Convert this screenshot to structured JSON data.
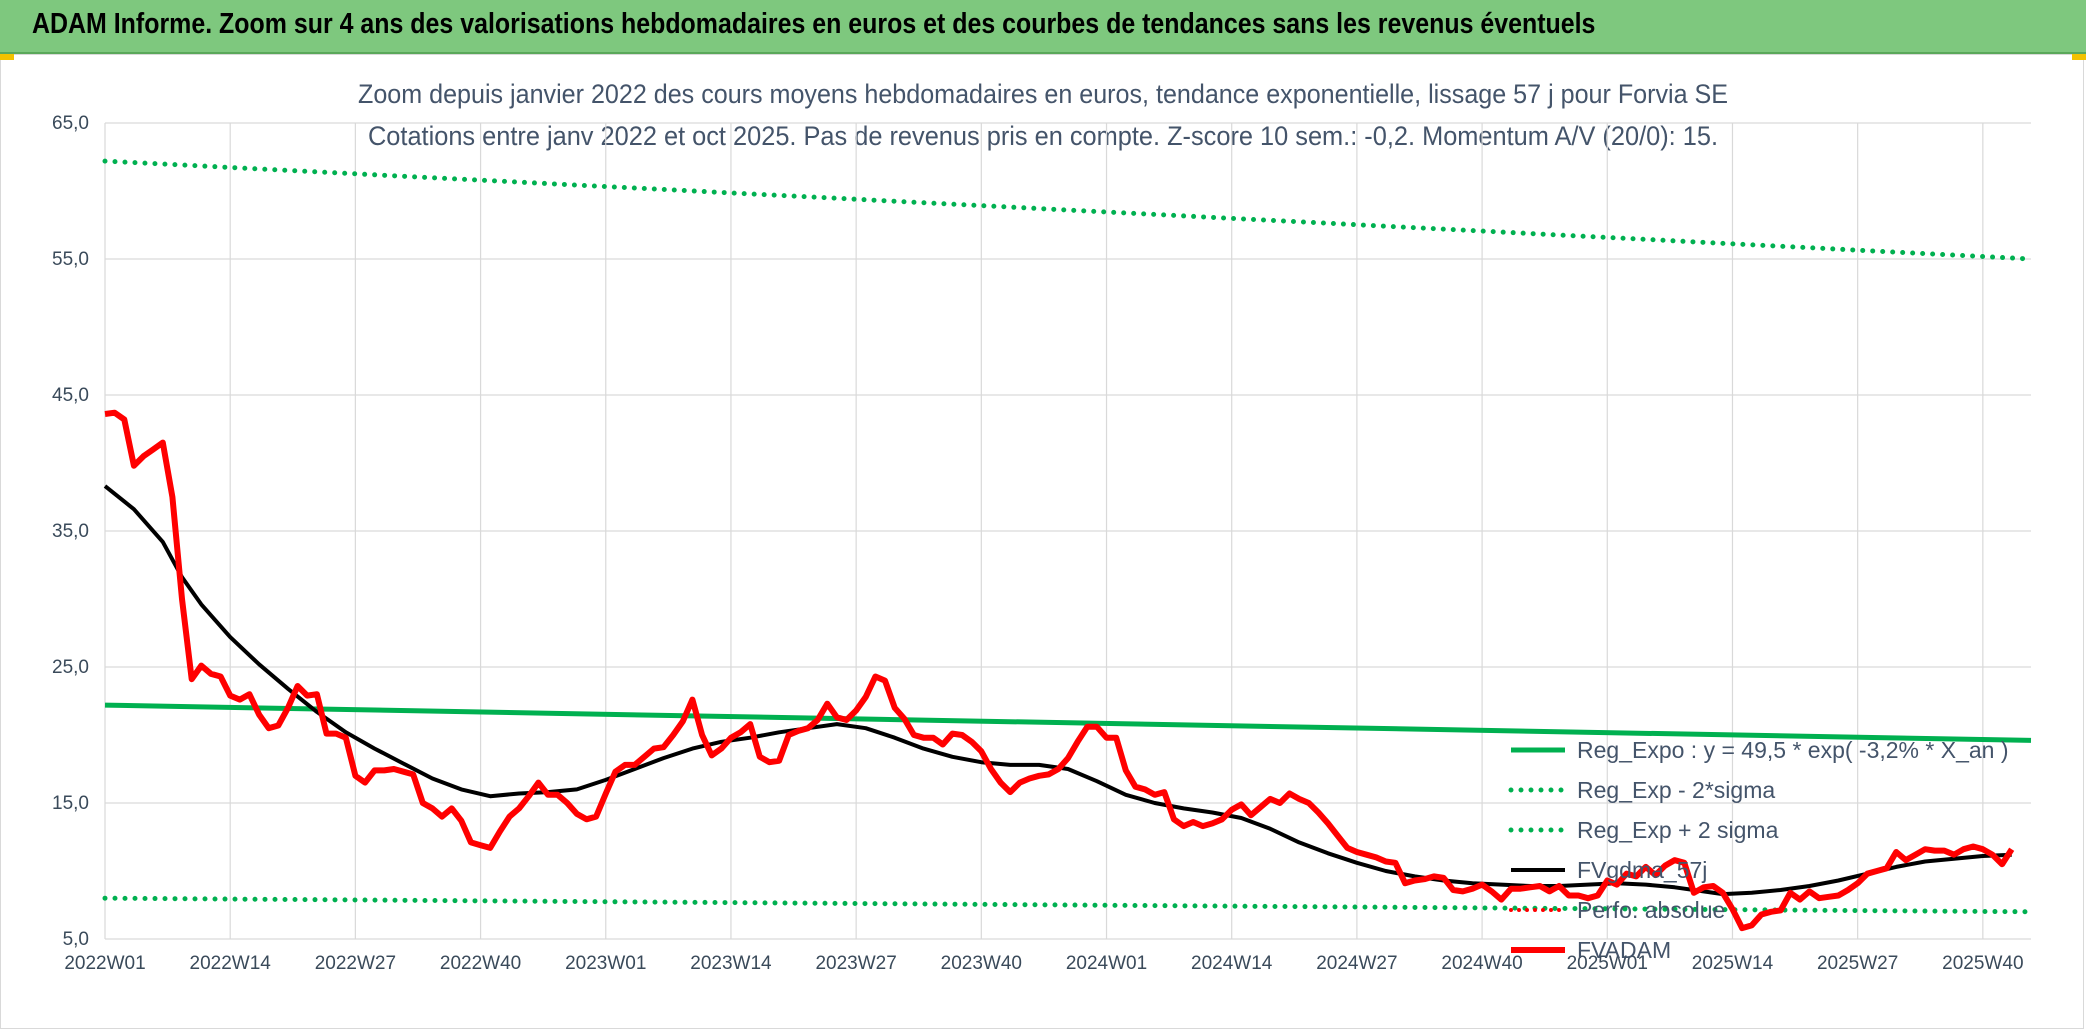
{
  "banner": {
    "title": "ADAM Informe. Zoom sur 4 ans des valorisations hebdomadaires en euros et des courbes de tendances sans les revenus éventuels"
  },
  "chart_data": {
    "type": "line",
    "title": "Zoom depuis janvier 2022 des cours moyens hebdomadaires en euros, tendance exponentielle, lissage 57 j pour Forvia SE",
    "subtitle": "Cotations entre janv 2022 et oct 2025. Pas de revenus pris en compte. Z-score 10 sem.: -0,2. Momentum A/V (20/0): 15.",
    "xlabel": "",
    "ylabel": "",
    "ylim": [
      5,
      65
    ],
    "y_ticks": [
      "5,0",
      "15,0",
      "25,0",
      "35,0",
      "45,0",
      "55,0",
      "65,0"
    ],
    "x_ticks": [
      "2022W01",
      "2022W14",
      "2022W27",
      "2022W40",
      "2023W01",
      "2023W14",
      "2023W27",
      "2023W40",
      "2024W01",
      "2024W14",
      "2024W27",
      "2024W40",
      "2025W01",
      "2025W14",
      "2025W27",
      "2025W40"
    ],
    "grid": true,
    "legend_position": "right",
    "colors": {
      "reg_expo": "#00b050",
      "reg_band": "#00b050",
      "fvgdma": "#000000",
      "perfo": "#ff0000"
    },
    "series": [
      {
        "name": "Reg_Expo : y = 49,5 * exp( -3,2% *  X_an )",
        "style": "solid-thick",
        "points": [
          [
            0,
            22.2
          ],
          [
            200,
            19.6
          ]
        ]
      },
      {
        "name": "Reg_Exp - 2*sigma",
        "style": "dotted",
        "points": [
          [
            0,
            8.0
          ],
          [
            200,
            7.0
          ]
        ]
      },
      {
        "name": "Reg_Exp + 2 sigma",
        "style": "dotted",
        "points": [
          [
            0,
            62.2
          ],
          [
            200,
            55.0
          ]
        ]
      },
      {
        "name": "FVgdma_57j",
        "style": "solid",
        "points": [
          [
            0,
            38.3
          ],
          [
            3,
            36.6
          ],
          [
            6,
            34.2
          ],
          [
            8,
            31.6
          ],
          [
            10,
            29.6
          ],
          [
            13,
            27.2
          ],
          [
            16,
            25.2
          ],
          [
            19,
            23.4
          ],
          [
            22,
            21.7
          ],
          [
            25,
            20.2
          ],
          [
            28,
            19.0
          ],
          [
            31,
            17.9
          ],
          [
            34,
            16.8
          ],
          [
            37,
            16.0
          ],
          [
            40,
            15.5
          ],
          [
            43,
            15.7
          ],
          [
            46,
            15.8
          ],
          [
            49,
            16.0
          ],
          [
            52,
            16.7
          ],
          [
            55,
            17.5
          ],
          [
            58,
            18.3
          ],
          [
            61,
            19.0
          ],
          [
            64,
            19.5
          ],
          [
            67,
            19.8
          ],
          [
            70,
            20.2
          ],
          [
            73,
            20.5
          ],
          [
            76,
            20.8
          ],
          [
            79,
            20.5
          ],
          [
            82,
            19.8
          ],
          [
            85,
            19.0
          ],
          [
            88,
            18.4
          ],
          [
            91,
            18.0
          ],
          [
            94,
            17.8
          ],
          [
            97,
            17.8
          ],
          [
            100,
            17.5
          ],
          [
            103,
            16.6
          ],
          [
            106,
            15.6
          ],
          [
            109,
            15.0
          ],
          [
            112,
            14.6
          ],
          [
            115,
            14.3
          ],
          [
            118,
            13.9
          ],
          [
            121,
            13.1
          ],
          [
            124,
            12.1
          ],
          [
            127,
            11.3
          ],
          [
            130,
            10.6
          ],
          [
            133,
            10.0
          ],
          [
            136,
            9.6
          ],
          [
            139,
            9.3
          ],
          [
            142,
            9.1
          ],
          [
            145,
            9.0
          ],
          [
            148,
            8.9
          ],
          [
            151,
            8.9
          ],
          [
            154,
            9.0
          ],
          [
            157,
            9.1
          ],
          [
            160,
            9.0
          ],
          [
            163,
            8.8
          ],
          [
            166,
            8.5
          ],
          [
            168,
            8.3
          ],
          [
            171,
            8.4
          ],
          [
            174,
            8.6
          ],
          [
            177,
            8.9
          ],
          [
            180,
            9.3
          ],
          [
            183,
            9.8
          ],
          [
            186,
            10.3
          ],
          [
            189,
            10.7
          ],
          [
            192,
            10.9
          ],
          [
            195,
            11.1
          ],
          [
            198,
            11.2
          ]
        ]
      },
      {
        "name": "Perfo. absolue",
        "style": "dotted",
        "points": []
      },
      {
        "name": "FVADAM",
        "style": "solid-thick",
        "points": [
          [
            0,
            43.6
          ],
          [
            1,
            43.7
          ],
          [
            2,
            43.2
          ],
          [
            3,
            39.8
          ],
          [
            4,
            40.5
          ],
          [
            5,
            41.0
          ],
          [
            6,
            41.5
          ],
          [
            7,
            37.5
          ],
          [
            8,
            30.0
          ],
          [
            9,
            24.1
          ],
          [
            10,
            25.1
          ],
          [
            11,
            24.5
          ],
          [
            12,
            24.3
          ],
          [
            13,
            22.9
          ],
          [
            14,
            22.6
          ],
          [
            15,
            23.0
          ],
          [
            16,
            21.5
          ],
          [
            17,
            20.5
          ],
          [
            18,
            20.7
          ],
          [
            19,
            22.0
          ],
          [
            20,
            23.6
          ],
          [
            21,
            22.9
          ],
          [
            22,
            23.0
          ],
          [
            23,
            20.1
          ],
          [
            24,
            20.1
          ],
          [
            25,
            19.8
          ],
          [
            26,
            17.0
          ],
          [
            27,
            16.5
          ],
          [
            28,
            17.4
          ],
          [
            29,
            17.4
          ],
          [
            30,
            17.5
          ],
          [
            31,
            17.3
          ],
          [
            32,
            17.1
          ],
          [
            33,
            15.0
          ],
          [
            34,
            14.6
          ],
          [
            35,
            14.0
          ],
          [
            36,
            14.6
          ],
          [
            37,
            13.7
          ],
          [
            38,
            12.1
          ],
          [
            39,
            11.9
          ],
          [
            40,
            11.7
          ],
          [
            41,
            12.9
          ],
          [
            42,
            14.0
          ],
          [
            43,
            14.6
          ],
          [
            44,
            15.5
          ],
          [
            45,
            16.5
          ],
          [
            46,
            15.6
          ],
          [
            47,
            15.6
          ],
          [
            48,
            15.0
          ],
          [
            49,
            14.2
          ],
          [
            50,
            13.8
          ],
          [
            51,
            14.0
          ],
          [
            52,
            15.7
          ],
          [
            53,
            17.3
          ],
          [
            54,
            17.8
          ],
          [
            55,
            17.8
          ],
          [
            56,
            18.4
          ],
          [
            57,
            19.0
          ],
          [
            58,
            19.1
          ],
          [
            59,
            20.0
          ],
          [
            60,
            21.0
          ],
          [
            61,
            22.6
          ],
          [
            62,
            20.0
          ],
          [
            63,
            18.5
          ],
          [
            64,
            19.0
          ],
          [
            65,
            19.8
          ],
          [
            66,
            20.2
          ],
          [
            67,
            20.8
          ],
          [
            68,
            18.4
          ],
          [
            69,
            18.0
          ],
          [
            70,
            18.1
          ],
          [
            71,
            20.0
          ],
          [
            72,
            20.3
          ],
          [
            73,
            20.5
          ],
          [
            74,
            21.1
          ],
          [
            75,
            22.3
          ],
          [
            76,
            21.3
          ],
          [
            77,
            21.1
          ],
          [
            78,
            21.8
          ],
          [
            79,
            22.8
          ],
          [
            80,
            24.3
          ],
          [
            81,
            24.0
          ],
          [
            82,
            22.0
          ],
          [
            83,
            21.2
          ],
          [
            84,
            20.0
          ],
          [
            85,
            19.8
          ],
          [
            86,
            19.8
          ],
          [
            87,
            19.3
          ],
          [
            88,
            20.1
          ],
          [
            89,
            20.0
          ],
          [
            90,
            19.5
          ],
          [
            91,
            18.8
          ],
          [
            92,
            17.5
          ],
          [
            93,
            16.5
          ],
          [
            94,
            15.8
          ],
          [
            95,
            16.5
          ],
          [
            96,
            16.8
          ],
          [
            97,
            17.0
          ],
          [
            98,
            17.1
          ],
          [
            99,
            17.5
          ],
          [
            100,
            18.3
          ],
          [
            101,
            19.5
          ],
          [
            102,
            20.6
          ],
          [
            103,
            20.6
          ],
          [
            104,
            19.8
          ],
          [
            105,
            19.8
          ],
          [
            106,
            17.4
          ],
          [
            107,
            16.2
          ],
          [
            108,
            16.0
          ],
          [
            109,
            15.6
          ],
          [
            110,
            15.8
          ],
          [
            111,
            13.8
          ],
          [
            112,
            13.3
          ],
          [
            113,
            13.6
          ],
          [
            114,
            13.3
          ],
          [
            115,
            13.5
          ],
          [
            116,
            13.8
          ],
          [
            117,
            14.5
          ],
          [
            118,
            14.9
          ],
          [
            119,
            14.1
          ],
          [
            120,
            14.7
          ],
          [
            121,
            15.3
          ],
          [
            122,
            15.0
          ],
          [
            123,
            15.7
          ],
          [
            124,
            15.3
          ],
          [
            125,
            15.0
          ],
          [
            126,
            14.3
          ],
          [
            127,
            13.5
          ],
          [
            128,
            12.6
          ],
          [
            129,
            11.7
          ],
          [
            130,
            11.4
          ],
          [
            131,
            11.2
          ],
          [
            132,
            11.0
          ],
          [
            133,
            10.7
          ],
          [
            134,
            10.6
          ],
          [
            135,
            9.1
          ],
          [
            136,
            9.3
          ],
          [
            137,
            9.4
          ],
          [
            138,
            9.6
          ],
          [
            139,
            9.5
          ],
          [
            140,
            8.6
          ],
          [
            141,
            8.5
          ],
          [
            142,
            8.7
          ],
          [
            143,
            9.0
          ],
          [
            144,
            8.5
          ],
          [
            145,
            7.9
          ],
          [
            146,
            8.7
          ],
          [
            147,
            8.7
          ],
          [
            148,
            8.8
          ],
          [
            149,
            8.9
          ],
          [
            150,
            8.5
          ],
          [
            151,
            8.9
          ],
          [
            152,
            8.2
          ],
          [
            153,
            8.2
          ],
          [
            154,
            8.0
          ],
          [
            155,
            8.2
          ],
          [
            156,
            9.3
          ],
          [
            157,
            9.0
          ],
          [
            158,
            9.8
          ],
          [
            159,
            9.6
          ],
          [
            160,
            10.3
          ],
          [
            161,
            9.7
          ],
          [
            162,
            10.4
          ],
          [
            163,
            10.8
          ],
          [
            164,
            10.6
          ],
          [
            165,
            8.4
          ],
          [
            166,
            8.8
          ],
          [
            167,
            8.9
          ],
          [
            168,
            8.4
          ],
          [
            169,
            7.2
          ],
          [
            170,
            5.8
          ],
          [
            171,
            6.0
          ],
          [
            172,
            6.8
          ],
          [
            173,
            7.0
          ],
          [
            174,
            7.1
          ],
          [
            175,
            8.4
          ],
          [
            176,
            7.9
          ],
          [
            177,
            8.5
          ],
          [
            178,
            8.0
          ],
          [
            179,
            8.1
          ],
          [
            180,
            8.2
          ],
          [
            181,
            8.6
          ],
          [
            182,
            9.1
          ],
          [
            183,
            9.8
          ],
          [
            184,
            10.0
          ],
          [
            185,
            10.2
          ],
          [
            186,
            11.4
          ],
          [
            187,
            10.8
          ],
          [
            188,
            11.2
          ],
          [
            189,
            11.6
          ],
          [
            190,
            11.5
          ],
          [
            191,
            11.5
          ],
          [
            192,
            11.2
          ],
          [
            193,
            11.6
          ],
          [
            194,
            11.8
          ],
          [
            195,
            11.6
          ],
          [
            196,
            11.2
          ],
          [
            197,
            10.5
          ],
          [
            198,
            11.6
          ]
        ]
      }
    ]
  }
}
